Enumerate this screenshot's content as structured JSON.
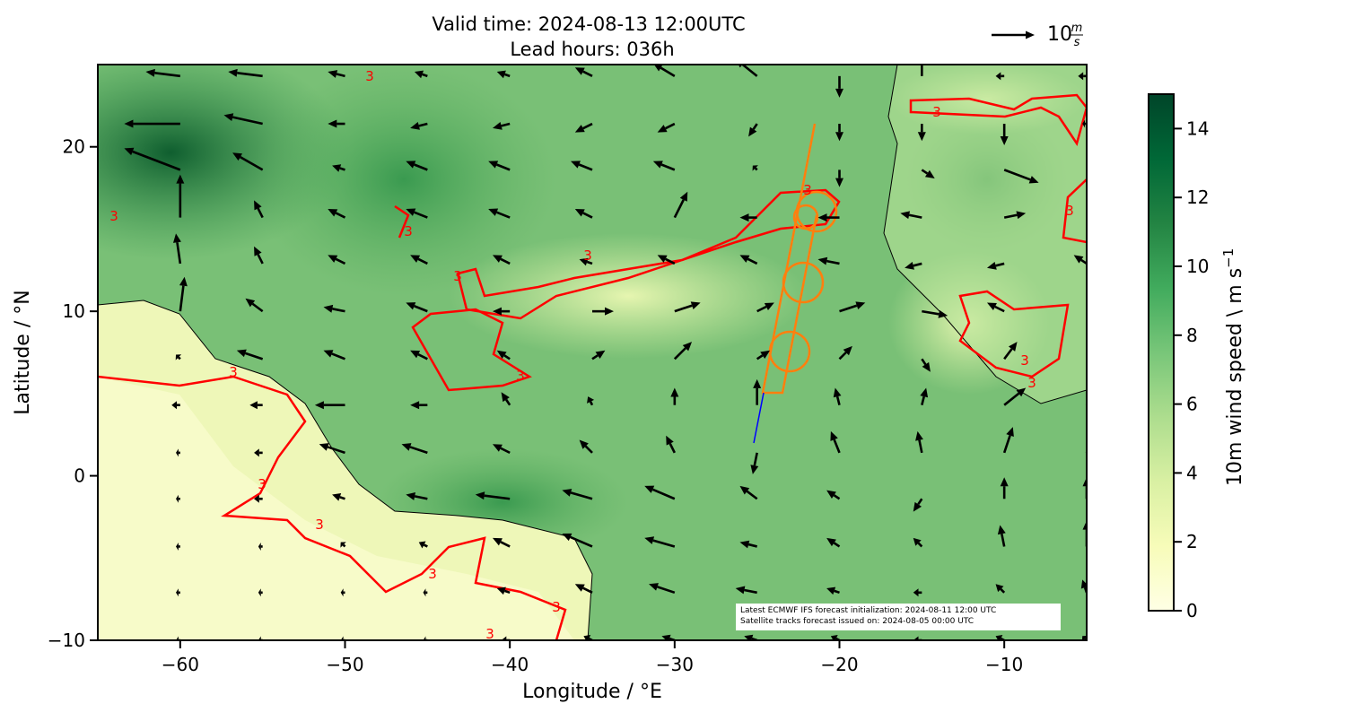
{
  "chart_data": {
    "type": "quiver-map",
    "title": "Valid time: 2024-08-13 12:00UTC",
    "subtitle": "Lead hours: 036h",
    "x_label": "Longitude / °E",
    "y_label": "Latitude / °N",
    "xlim": [
      -65,
      -5
    ],
    "ylim": [
      -10,
      25
    ],
    "xticks": [
      {
        "value": -60,
        "label": "−60"
      },
      {
        "value": -50,
        "label": "−50"
      },
      {
        "value": -40,
        "label": "−40"
      },
      {
        "value": -30,
        "label": "−30"
      },
      {
        "value": -20,
        "label": "−20"
      },
      {
        "value": -10,
        "label": "−10"
      }
    ],
    "yticks": [
      {
        "value": -10,
        "label": "−10"
      },
      0,
      10,
      20
    ],
    "colorbar": {
      "label": "10m wind speed \\ m s",
      "label_exponent": "−1",
      "clim": [
        0,
        15
      ],
      "ticks": [
        0,
        2,
        4,
        6,
        8,
        10,
        12,
        14
      ],
      "colors": [
        "#ffffe5",
        "#f7fcb9",
        "#d9f0a3",
        "#addd8e",
        "#78c679",
        "#41ab5d",
        "#238443",
        "#006837",
        "#004529"
      ]
    },
    "quiver_key": {
      "value": 10,
      "unit_numerator": "m",
      "unit_denominator": "s",
      "color": "#000000"
    },
    "contour_level": 3,
    "contour_color": "#ff0000",
    "track_color": "#ff7f0e",
    "annotation": [
      "Latest ECMWF IFS forecast initialization: 2024-08-11 12:00 UTC",
      "Satellite tracks forecast issued on: 2024-08-05 00:00 UTC"
    ],
    "wind": {
      "lon": [
        -65,
        -60,
        -55,
        -50,
        -45,
        -40,
        -35,
        -30,
        -25,
        -20,
        -15,
        -10,
        -5
      ],
      "lat": [
        24.3,
        21.4,
        18.6,
        15.7,
        12.9,
        10,
        7.1,
        4.3,
        1.4,
        -1.4,
        -4.3,
        -7.1,
        -10
      ],
      "u": [
        [
          -3,
          -8,
          -8,
          -4,
          -3,
          -3,
          -4,
          -5,
          -5,
          0,
          0,
          -2,
          -2
        ],
        [
          -4,
          -13,
          -9,
          -4,
          -4,
          -4,
          -4,
          -4,
          -2,
          0,
          0,
          0,
          -1
        ],
        [
          -4,
          -13,
          -7,
          -3,
          -5,
          -5,
          -5,
          -5,
          -1,
          0,
          3,
          8,
          6
        ],
        [
          -3,
          0,
          -2,
          -4,
          -5,
          -5,
          -4,
          3,
          -4,
          -5,
          -5,
          5,
          3
        ],
        [
          -3,
          -1,
          -2,
          -4,
          -4,
          -4,
          -3,
          -4,
          -4,
          -5,
          -4,
          -4,
          -3
        ],
        [
          -3,
          1,
          -4,
          -5,
          -5,
          -4,
          5,
          6,
          4,
          6,
          6,
          -4,
          3
        ],
        [
          -2,
          -1,
          -6,
          -5,
          -4,
          -3,
          3,
          4,
          3,
          3,
          2,
          3,
          4
        ],
        [
          -2,
          -2,
          -3,
          -7,
          -4,
          -2,
          -1,
          0,
          0,
          -1,
          1,
          5,
          3
        ],
        [
          -1,
          -1,
          -2,
          -6,
          -6,
          -4,
          -3,
          -2,
          -1,
          -2,
          -1,
          2,
          2
        ],
        [
          -1,
          -1,
          -2,
          -3,
          -5,
          -8,
          -7,
          -7,
          -4,
          -3,
          -2,
          0,
          0
        ],
        [
          -1,
          -1,
          -1,
          -1,
          -2,
          -4,
          -7,
          -7,
          -4,
          -3,
          -2,
          -1,
          0
        ],
        [
          -1,
          -1,
          -1,
          -1,
          -1,
          -3,
          -4,
          -6,
          -5,
          -3,
          -2,
          -2,
          -1
        ],
        [
          -1,
          -1,
          -1,
          -1,
          -1,
          -2,
          -2,
          -3,
          -3,
          -2,
          -2,
          -2,
          -1
        ]
      ],
      "v": [
        [
          1,
          1,
          1,
          1,
          1,
          1,
          2,
          3,
          4,
          -5,
          5,
          0,
          0
        ],
        [
          2,
          0,
          2,
          0,
          -1,
          -1,
          -2,
          -2,
          -3,
          -4,
          -4,
          -5,
          0
        ],
        [
          0,
          5,
          4,
          1,
          2,
          2,
          2,
          2,
          1,
          -4,
          -2,
          -3,
          0
        ],
        [
          1,
          10,
          4,
          2,
          2,
          2,
          2,
          6,
          0,
          0,
          1,
          1,
          3
        ],
        [
          1,
          7,
          4,
          2,
          2,
          2,
          1,
          2,
          2,
          1,
          -1,
          -1,
          2
        ],
        [
          1,
          8,
          3,
          1,
          2,
          0,
          0,
          2,
          2,
          2,
          -1,
          2,
          2
        ],
        [
          0,
          1,
          2,
          2,
          2,
          2,
          2,
          4,
          2,
          3,
          -3,
          4,
          5
        ],
        [
          0,
          0,
          0,
          0,
          0,
          3,
          2,
          4,
          6,
          4,
          4,
          4,
          6
        ],
        [
          0,
          0,
          0,
          2,
          2,
          2,
          3,
          4,
          -5,
          5,
          5,
          6,
          6
        ],
        [
          0,
          0,
          0,
          1,
          1,
          1,
          2,
          3,
          3,
          2,
          -3,
          5,
          5
        ],
        [
          0,
          0,
          0,
          1,
          1,
          2,
          3,
          2,
          1,
          2,
          2,
          5,
          6
        ],
        [
          0,
          0,
          0,
          0,
          0,
          1,
          2,
          2,
          1,
          1,
          0,
          2,
          3
        ],
        [
          0,
          0,
          0,
          0,
          0,
          0,
          1,
          1,
          1,
          1,
          0,
          1,
          1
        ]
      ]
    }
  }
}
